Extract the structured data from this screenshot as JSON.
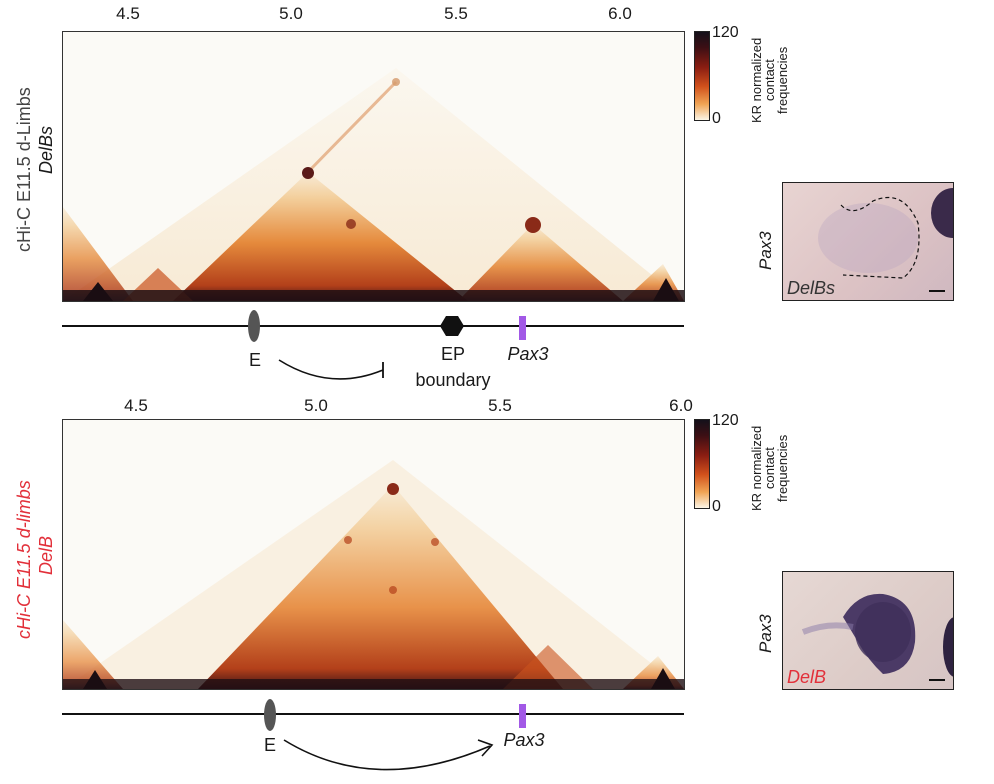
{
  "panel_top": {
    "axis_ticks": [
      "4.5",
      "5.0",
      "5.5",
      "6.0"
    ],
    "ylabel_line1": "cHi-C E11.5 d-Limbs",
    "ylabel_line2": "DelBs",
    "colorbar": {
      "max": "120",
      "min": "0",
      "title_lines": [
        "KR normalized",
        "contact",
        "frequencies"
      ]
    },
    "track": {
      "enhancer": "E",
      "boundary_element": "EP",
      "boundary_caption": "boundary",
      "gene": "Pax3"
    },
    "photo": {
      "gene_label": "Pax3",
      "caption": "DelBs"
    }
  },
  "panel_bottom": {
    "axis_ticks": [
      "4.5",
      "5.0",
      "5.5",
      "6.0"
    ],
    "ylabel_line1": "cHi-C E11.5 d-limbs",
    "ylabel_line2": "DelB",
    "colorbar": {
      "max": "120",
      "min": "0",
      "title_lines": [
        "KR normalized",
        "contact",
        "frequencies"
      ]
    },
    "track": {
      "enhancer": "E",
      "gene": "Pax3"
    },
    "photo": {
      "gene_label": "Pax3",
      "caption": "DelB"
    }
  },
  "colors": {
    "gene_marker": "#a259e6",
    "caption_red": "#e2303a",
    "heat_dark": "#14101a",
    "heat_mid": "#d1511c",
    "heat_light": "#fbf5e6"
  }
}
